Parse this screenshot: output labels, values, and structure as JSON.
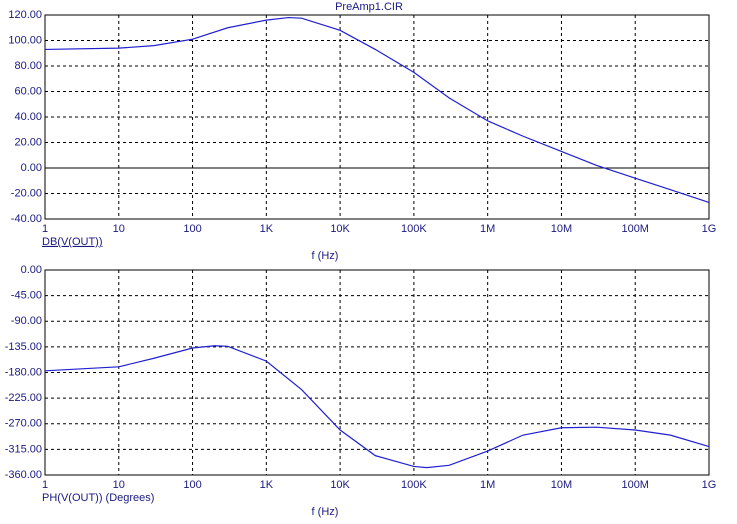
{
  "chart_data": [
    {
      "type": "line",
      "title": "PreAmp1.CIR",
      "x_label": "f (Hz)",
      "log_x": true,
      "grid": true,
      "x": [
        1,
        10,
        30,
        100,
        300,
        1000,
        2000,
        3000,
        10000,
        30000,
        100000,
        300000,
        1000000,
        3000000,
        10000000,
        30000000,
        100000000,
        300000000,
        1000000000
      ],
      "series": [
        {
          "name": "DB(V(OUT))",
          "color": "#2020d0",
          "values": [
            93,
            94,
            96,
            101,
            110,
            116,
            118,
            117.5,
            108,
            93,
            75,
            55,
            37,
            25,
            13,
            2,
            -8,
            -17,
            -27
          ]
        }
      ],
      "xlim": [
        1,
        1000000000
      ],
      "xticks": [
        1,
        10,
        100,
        {
          "value": 1000,
          "label": "1K"
        },
        {
          "value": 10000,
          "label": "10K"
        },
        {
          "value": 100000,
          "label": "100K"
        },
        {
          "value": 1000000,
          "label": "1M"
        },
        {
          "value": 10000000,
          "label": "10M"
        },
        {
          "value": 100000000,
          "label": "100M"
        },
        {
          "value": 1000000000,
          "label": "1G"
        }
      ],
      "ylim": [
        -40,
        120
      ],
      "yticks": [
        {
          "value": -40,
          "label": "-40.00"
        },
        {
          "value": -20,
          "label": "-20.00"
        },
        {
          "value": 0,
          "label": "0.00"
        },
        {
          "value": 20,
          "label": "20.00"
        },
        {
          "value": 40,
          "label": "40.00"
        },
        {
          "value": 60,
          "label": "60.00"
        },
        {
          "value": 80,
          "label": "80.00"
        },
        {
          "value": 100,
          "label": "100.00"
        },
        {
          "value": 120,
          "label": "120.00"
        }
      ]
    },
    {
      "type": "line",
      "x_label": "f (Hz)",
      "log_x": true,
      "grid": true,
      "x": [
        1,
        10,
        30,
        100,
        200,
        300,
        1000,
        3000,
        10000,
        30000,
        100000,
        150000,
        300000,
        1000000,
        3000000,
        10000000,
        30000000,
        100000000,
        300000000,
        1000000000
      ],
      "series": [
        {
          "name": "PH(V(OUT)) (Degrees)",
          "color": "#2020d0",
          "values": [
            -177,
            -170,
            -155,
            -137,
            -133,
            -134,
            -160,
            -210,
            -281,
            -326,
            -345,
            -347,
            -343,
            -318,
            -290,
            -277,
            -276,
            -281,
            -290,
            -310
          ]
        }
      ],
      "xlim": [
        1,
        1000000000
      ],
      "xticks": [
        1,
        10,
        100,
        {
          "value": 1000,
          "label": "1K"
        },
        {
          "value": 10000,
          "label": "10K"
        },
        {
          "value": 100000,
          "label": "100K"
        },
        {
          "value": 1000000,
          "label": "1M"
        },
        {
          "value": 10000000,
          "label": "10M"
        },
        {
          "value": 100000000,
          "label": "100M"
        },
        {
          "value": 1000000000,
          "label": "1G"
        }
      ],
      "ylim": [
        -360,
        0
      ],
      "yticks": [
        {
          "value": -360,
          "label": "-360.00"
        },
        {
          "value": -315,
          "label": "-315.00"
        },
        {
          "value": -270,
          "label": "-270.00"
        },
        {
          "value": -225,
          "label": "-225.00"
        },
        {
          "value": -180,
          "label": "-180.00"
        },
        {
          "value": -135,
          "label": "-135.00"
        },
        {
          "value": -90,
          "label": "-90.00"
        },
        {
          "value": -45,
          "label": "-45.00"
        },
        {
          "value": 0,
          "label": "0.00"
        }
      ]
    }
  ]
}
